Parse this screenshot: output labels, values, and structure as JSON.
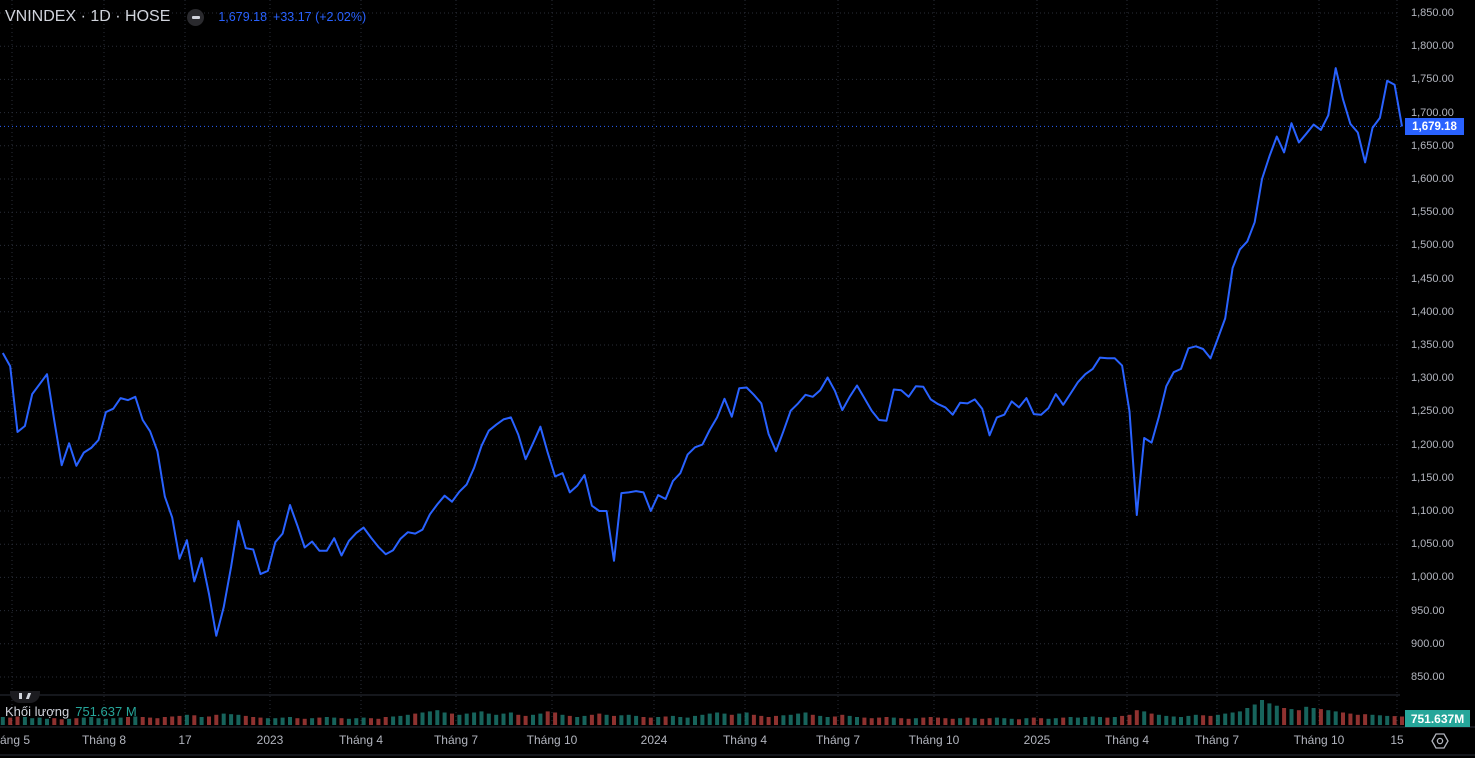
{
  "header": {
    "symbol": "VNINDEX · 1D · HOSE",
    "last": "1,679.18",
    "change": "+33.17 (+2.02%)"
  },
  "price_tag": "1,679.18",
  "volume": {
    "label": "Khối lượng",
    "value": "751.637 M",
    "tag": "751.637M"
  },
  "colors": {
    "line": "#2962ff",
    "up": "#26a69a",
    "down": "#ef5350",
    "grid": "#2a2e39",
    "background": "#000000"
  },
  "icons": {
    "collapse": "minus-circle-icon",
    "settings": "settings-gear-icon"
  },
  "chart_data": {
    "type": "line",
    "title": "VNINDEX · 1D · HOSE",
    "ylim": [
      850,
      1850
    ],
    "grid": true,
    "y_ticks": [
      "1,850.00",
      "1,800.00",
      "1,750.00",
      "1,700.00",
      "1,650.00",
      "1,600.00",
      "1,550.00",
      "1,500.00",
      "1,450.00",
      "1,400.00",
      "1,350.00",
      "1,300.00",
      "1,250.00",
      "1,200.00",
      "1,150.00",
      "1,100.00",
      "1,050.00",
      "1,000.00",
      "950.00",
      "900.00",
      "850.00"
    ],
    "x_ticks": [
      "áng 5",
      "Tháng 8",
      "17",
      "2023",
      "Tháng 4",
      "Tháng 7",
      "Tháng 10",
      "2024",
      "Tháng 4",
      "Tháng 7",
      "Tháng 10",
      "2025",
      "Tháng 4",
      "Tháng 7",
      "Tháng 10",
      "15"
    ],
    "dates": [
      "2022-04-22",
      "2022-04-29",
      "2022-05-06",
      "2022-05-13",
      "2022-05-20",
      "2022-05-27",
      "2022-06-03",
      "2022-06-10",
      "2022-06-17",
      "2022-06-24",
      "2022-07-01",
      "2022-07-08",
      "2022-07-15",
      "2022-07-22",
      "2022-07-29",
      "2022-08-05",
      "2022-08-12",
      "2022-08-19",
      "2022-08-26",
      "2022-09-02",
      "2022-09-09",
      "2022-09-16",
      "2022-09-23",
      "2022-09-30",
      "2022-10-07",
      "2022-10-14",
      "2022-10-21",
      "2022-10-28",
      "2022-11-04",
      "2022-11-11",
      "2022-11-18",
      "2022-11-25",
      "2022-12-02",
      "2022-12-09",
      "2022-12-16",
      "2022-12-23",
      "2022-12-30",
      "2023-01-06",
      "2023-01-13",
      "2023-01-20",
      "2023-01-27",
      "2023-02-03",
      "2023-02-10",
      "2023-02-17",
      "2023-02-24",
      "2023-03-03",
      "2023-03-10",
      "2023-03-17",
      "2023-03-24",
      "2023-03-31",
      "2023-04-07",
      "2023-04-14",
      "2023-04-21",
      "2023-04-28",
      "2023-05-05",
      "2023-05-12",
      "2023-05-19",
      "2023-05-26",
      "2023-06-02",
      "2023-06-09",
      "2023-06-16",
      "2023-06-23",
      "2023-06-30",
      "2023-07-07",
      "2023-07-14",
      "2023-07-21",
      "2023-07-28",
      "2023-08-04",
      "2023-08-11",
      "2023-08-18",
      "2023-08-25",
      "2023-09-01",
      "2023-09-08",
      "2023-09-15",
      "2023-09-22",
      "2023-09-29",
      "2023-10-06",
      "2023-10-13",
      "2023-10-20",
      "2023-10-27",
      "2023-11-03",
      "2023-11-10",
      "2023-11-17",
      "2023-11-24",
      "2023-12-01",
      "2023-12-08",
      "2023-12-15",
      "2023-12-22",
      "2023-12-29",
      "2024-01-05",
      "2024-01-12",
      "2024-01-19",
      "2024-01-26",
      "2024-02-02",
      "2024-02-09",
      "2024-02-16",
      "2024-02-23",
      "2024-03-01",
      "2024-03-08",
      "2024-03-15",
      "2024-03-22",
      "2024-03-29",
      "2024-04-05",
      "2024-04-12",
      "2024-04-19",
      "2024-04-26",
      "2024-05-03",
      "2024-05-10",
      "2024-05-17",
      "2024-05-24",
      "2024-05-31",
      "2024-06-07",
      "2024-06-14",
      "2024-06-21",
      "2024-06-28",
      "2024-07-05",
      "2024-07-12",
      "2024-07-19",
      "2024-07-26",
      "2024-08-02",
      "2024-08-09",
      "2024-08-16",
      "2024-08-23",
      "2024-08-30",
      "2024-09-06",
      "2024-09-13",
      "2024-09-20",
      "2024-09-27",
      "2024-10-04",
      "2024-10-11",
      "2024-10-18",
      "2024-10-25",
      "2024-11-01",
      "2024-11-08",
      "2024-11-15",
      "2024-11-22",
      "2024-11-29",
      "2024-12-06",
      "2024-12-13",
      "2024-12-20",
      "2024-12-27",
      "2025-01-03",
      "2025-01-10",
      "2025-01-17",
      "2025-01-24",
      "2025-01-31",
      "2025-02-07",
      "2025-02-14",
      "2025-02-21",
      "2025-02-28",
      "2025-03-07",
      "2025-03-14",
      "2025-03-21",
      "2025-03-28",
      "2025-04-04",
      "2025-04-11",
      "2025-04-18",
      "2025-04-25",
      "2025-05-02",
      "2025-05-09",
      "2025-05-16",
      "2025-05-23",
      "2025-05-30",
      "2025-06-06",
      "2025-06-13",
      "2025-06-20",
      "2025-06-27",
      "2025-07-04",
      "2025-07-11",
      "2025-07-18",
      "2025-07-25",
      "2025-08-01",
      "2025-08-08",
      "2025-08-15",
      "2025-08-22",
      "2025-08-29",
      "2025-09-05",
      "2025-09-12",
      "2025-09-19",
      "2025-09-26",
      "2025-10-03",
      "2025-10-10",
      "2025-10-17",
      "2025-10-24",
      "2025-10-31",
      "2025-11-07",
      "2025-11-14",
      "2025-11-21",
      "2025-11-28",
      "2025-12-05",
      "2025-12-12"
    ],
    "close": [
      1338,
      1318,
      1219,
      1228,
      1276,
      1291,
      1306,
      1236,
      1169,
      1202,
      1168,
      1188,
      1195,
      1207,
      1249,
      1254,
      1270,
      1267,
      1272,
      1237,
      1220,
      1190,
      1122,
      1090,
      1028,
      1056,
      994,
      1029,
      975,
      912,
      955,
      1016,
      1085,
      1044,
      1042,
      1005,
      1010,
      1053,
      1066,
      1109,
      1078,
      1045,
      1054,
      1040,
      1040,
      1059,
      1033,
      1055,
      1067,
      1075,
      1060,
      1046,
      1035,
      1041,
      1058,
      1068,
      1066,
      1072,
      1095,
      1110,
      1123,
      1114,
      1129,
      1140,
      1165,
      1198,
      1221,
      1230,
      1238,
      1241,
      1215,
      1178,
      1202,
      1227,
      1188,
      1152,
      1157,
      1128,
      1138,
      1154,
      1108,
      1100,
      1100,
      1025,
      1127,
      1128,
      1130,
      1128,
      1100,
      1124,
      1118,
      1145,
      1157,
      1185,
      1196,
      1200,
      1222,
      1241,
      1269,
      1242,
      1285,
      1286,
      1275,
      1262,
      1216,
      1190,
      1220,
      1251,
      1262,
      1275,
      1272,
      1282,
      1301,
      1281,
      1252,
      1272,
      1289,
      1270,
      1251,
      1237,
      1236,
      1283,
      1282,
      1272,
      1288,
      1287,
      1268,
      1261,
      1256,
      1245,
      1263,
      1262,
      1268,
      1254,
      1214,
      1241,
      1245,
      1265,
      1256,
      1270,
      1246,
      1245,
      1255,
      1276,
      1260,
      1277,
      1294,
      1306,
      1314,
      1331,
      1330,
      1330,
      1319,
      1250,
      1094,
      1210,
      1203,
      1242,
      1288,
      1309,
      1314,
      1345,
      1348,
      1344,
      1330,
      1360,
      1390,
      1466,
      1494,
      1506,
      1535,
      1600,
      1634,
      1664,
      1640,
      1684,
      1655,
      1668,
      1682,
      1674,
      1696,
      1767,
      1720,
      1683,
      1670,
      1625,
      1677,
      1692,
      1748,
      1742,
      1679.18
    ],
    "volume_millions": [
      700,
      650,
      750,
      700,
      600,
      650,
      550,
      600,
      500,
      550,
      600,
      650,
      700,
      600,
      550,
      600,
      650,
      700,
      750,
      700,
      650,
      600,
      700,
      750,
      800,
      900,
      850,
      700,
      750,
      900,
      1000,
      950,
      900,
      800,
      700,
      650,
      600,
      600,
      650,
      700,
      600,
      550,
      600,
      650,
      700,
      650,
      600,
      550,
      600,
      650,
      600,
      550,
      700,
      750,
      800,
      900,
      1000,
      1100,
      1200,
      1300,
      1100,
      1000,
      900,
      1000,
      1100,
      1200,
      1000,
      900,
      1000,
      1100,
      900,
      800,
      900,
      1000,
      1200,
      1100,
      900,
      800,
      700,
      800,
      900,
      1000,
      900,
      800,
      850,
      900,
      800,
      700,
      650,
      700,
      750,
      800,
      700,
      650,
      800,
      900,
      1000,
      1100,
      1000,
      900,
      1000,
      1100,
      900,
      800,
      700,
      800,
      850,
      900,
      1000,
      1100,
      900,
      800,
      700,
      750,
      900,
      800,
      700,
      650,
      600,
      650,
      700,
      650,
      600,
      550,
      600,
      650,
      700,
      650,
      600,
      550,
      600,
      650,
      600,
      550,
      600,
      650,
      600,
      550,
      500,
      600,
      650,
      600,
      550,
      600,
      650,
      700,
      650,
      700,
      750,
      700,
      650,
      700,
      800,
      900,
      1300,
      1200,
      1000,
      900,
      800,
      750,
      700,
      800,
      900,
      850,
      800,
      900,
      1000,
      1100,
      1200,
      1500,
      1800,
      2200,
      1900,
      1700,
      1500,
      1400,
      1300,
      1600,
      1500,
      1400,
      1300,
      1200,
      1100,
      1000,
      900,
      950,
      900,
      850,
      800,
      780,
      751.637
    ]
  }
}
